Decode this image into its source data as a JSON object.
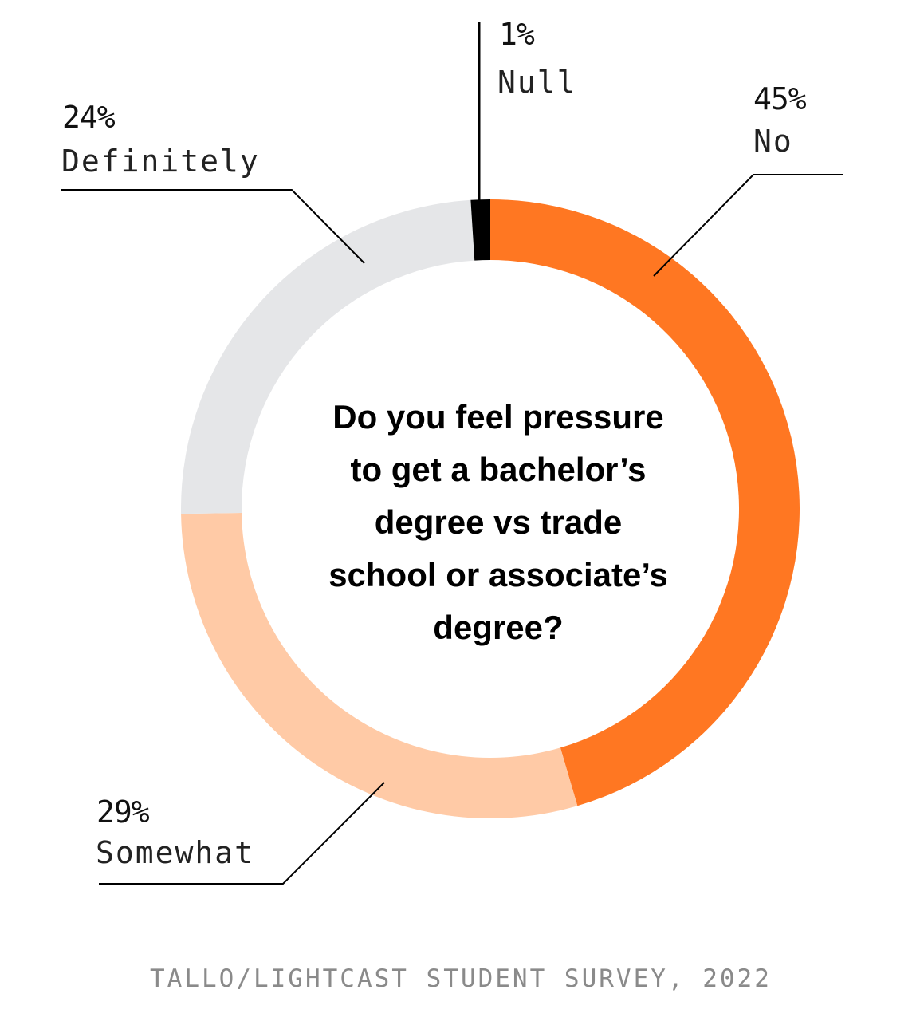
{
  "chart_data": {
    "type": "pie",
    "variant": "donut",
    "title": "Do you feel pressure to get a bachelor’s degree vs trade school or associate’s degree?",
    "source": "TALLO/LIGHTCAST STUDENT SURVEY, 2022",
    "categories": [
      "No",
      "Somewhat",
      "Definitely",
      "Null"
    ],
    "values": [
      45,
      29,
      24,
      1
    ],
    "unit": "%",
    "colors": {
      "No": "#ff7722",
      "Somewhat": "#ffcaa6",
      "Definitely": "#e5e6e8",
      "Null": "#000000"
    },
    "labels": [
      {
        "pct": "45%",
        "name": "No"
      },
      {
        "pct": "29%",
        "name": "Somewhat"
      },
      {
        "pct": "24%",
        "name": "Definitely"
      },
      {
        "pct": "1%",
        "name": "Null"
      }
    ],
    "legend": "none (leader-line labels)"
  },
  "center_question": {
    "line1": "Do you feel pressure",
    "line2": "to get a bachelor’s",
    "line3": "degree vs trade",
    "line4": "school or associate’s",
    "line5": "degree?"
  },
  "labels": {
    "no": {
      "pct": "45%",
      "name": "No"
    },
    "somewhat": {
      "pct": "29%",
      "name": "Somewhat"
    },
    "definitely": {
      "pct": "24%",
      "name": "Definitely"
    },
    "null": {
      "pct": "1%",
      "name": "Null"
    }
  },
  "source": "TALLO/LIGHTCAST STUDENT SURVEY, 2022"
}
